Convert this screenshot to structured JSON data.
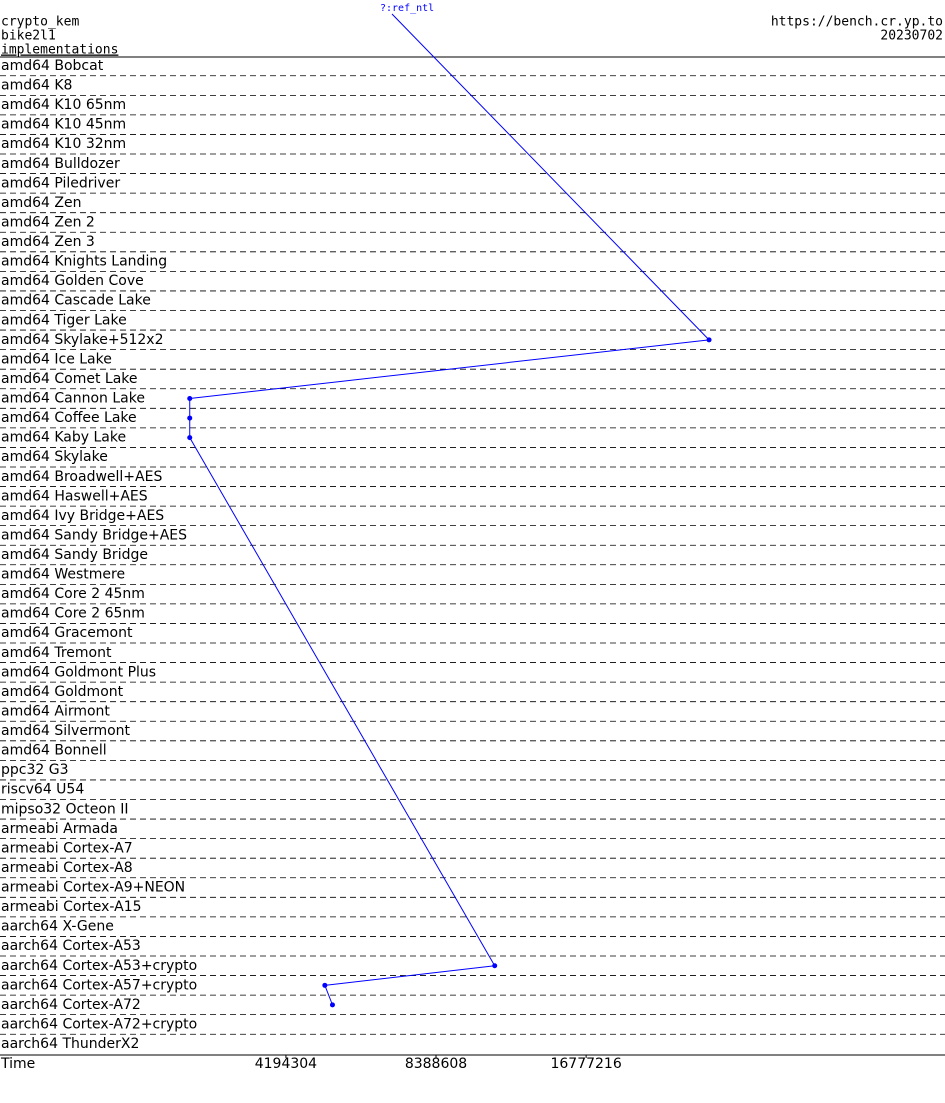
{
  "header": {
    "primitive": "crypto_kem",
    "system": "bike2l1",
    "section": "implementations",
    "url": "https://bench.cr.yp.to",
    "date": "20230702"
  },
  "chart_data": {
    "type": "dotline",
    "xlabel": "Time",
    "xscale": "log",
    "xlim": [
      1120000,
      88000000
    ],
    "xticks": [
      4194304,
      8388608,
      16777216
    ],
    "categories": [
      "amd64 Bobcat",
      "amd64 K8",
      "amd64 K10 65nm",
      "amd64 K10 45nm",
      "amd64 K10 32nm",
      "amd64 Bulldozer",
      "amd64 Piledriver",
      "amd64 Zen",
      "amd64 Zen 2",
      "amd64 Zen 3",
      "amd64 Knights Landing",
      "amd64 Golden Cove",
      "amd64 Cascade Lake",
      "amd64 Tiger Lake",
      "amd64 Skylake+512x2",
      "amd64 Ice Lake",
      "amd64 Comet Lake",
      "amd64 Cannon Lake",
      "amd64 Coffee Lake",
      "amd64 Kaby Lake",
      "amd64 Skylake",
      "amd64 Broadwell+AES",
      "amd64 Haswell+AES",
      "amd64 Ivy Bridge+AES",
      "amd64 Sandy Bridge+AES",
      "amd64 Sandy Bridge",
      "amd64 Westmere",
      "amd64 Core 2 45nm",
      "amd64 Core 2 65nm",
      "amd64 Gracemont",
      "amd64 Tremont",
      "amd64 Goldmont Plus",
      "amd64 Goldmont",
      "amd64 Airmont",
      "amd64 Silvermont",
      "amd64 Bonnell",
      "ppc32 G3",
      "riscv64 U54",
      "mipso32 Octeon II",
      "armeabi Armada",
      "armeabi Cortex-A7",
      "armeabi Cortex-A8",
      "armeabi Cortex-A9+NEON",
      "armeabi Cortex-A15",
      "aarch64 X-Gene",
      "aarch64 Cortex-A53",
      "aarch64 Cortex-A53+crypto",
      "aarch64 Cortex-A57+crypto",
      "aarch64 Cortex-A72",
      "aarch64 Cortex-A72+crypto",
      "aarch64 ThunderX2"
    ],
    "series": [
      {
        "name": "?:ref_ntl",
        "color": "#0000ff",
        "values": [
          null,
          null,
          null,
          null,
          null,
          null,
          null,
          null,
          null,
          null,
          null,
          null,
          null,
          null,
          29600000,
          null,
          null,
          2690000,
          2690000,
          2690000,
          null,
          null,
          null,
          null,
          null,
          null,
          null,
          null,
          null,
          null,
          null,
          null,
          null,
          null,
          null,
          null,
          null,
          null,
          null,
          null,
          null,
          null,
          null,
          null,
          null,
          null,
          11000000,
          5020000,
          5200000,
          null,
          null
        ]
      }
    ]
  }
}
